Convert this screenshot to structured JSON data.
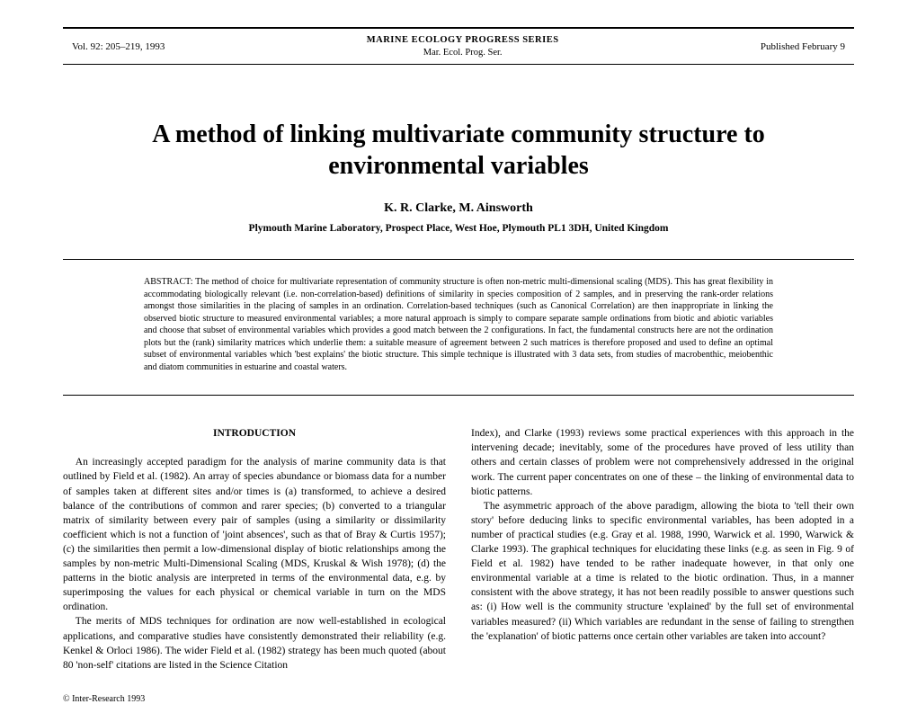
{
  "header": {
    "left": "Vol. 92: 205–219, 1993",
    "center_series": "MARINE ECOLOGY PROGRESS SERIES",
    "center_abbrev": "Mar. Ecol. Prog. Ser.",
    "right": "Published February 9"
  },
  "title": "A method of linking multivariate community structure to environmental variables",
  "authors": "K. R. Clarke, M. Ainsworth",
  "affiliation": "Plymouth Marine Laboratory, Prospect Place, West Hoe, Plymouth PL1 3DH, United Kingdom",
  "abstract": "ABSTRACT: The method of choice for multivariate representation of community structure is often non-metric multi-dimensional scaling (MDS). This has great flexibility in accommodating biologically relevant (i.e. non-correlation-based) definitions of similarity in species composition of 2 samples, and in preserving the rank-order relations amongst those similarities in the placing of samples in an ordination. Correlation-based techniques (such as Canonical Correlation) are then inappropriate in linking the observed biotic structure to measured environmental variables; a more natural approach is simply to compare separate sample ordinations from biotic and abiotic variables and choose that subset of environmental variables which provides a good match between the 2 configurations. In fact, the fundamental constructs here are not the ordination plots but the (rank) similarity matrices which underlie them: a suitable measure of agreement between 2 such matrices is therefore proposed and used to define an optimal subset of environmental variables which 'best explains' the biotic structure. This simple technique is illustrated with 3 data sets, from studies of macrobenthic, meiobenthic and diatom communities in estuarine and coastal waters.",
  "section_title": "INTRODUCTION",
  "left_p1": "An increasingly accepted paradigm for the analysis of marine community data is that outlined by Field et al. (1982). An array of species abundance or biomass data for a number of samples taken at different sites and/or times is (a) transformed, to achieve a desired balance of the contributions of common and rarer species; (b) converted to a triangular matrix of similarity between every pair of samples (using a similarity or dissimilarity coefficient which is not a function of 'joint absences', such as that of Bray & Curtis 1957); (c) the similarities then permit a low-dimensional display of biotic relationships among the samples by non-metric Multi-Dimensional Scaling (MDS, Kruskal & Wish 1978); (d) the patterns in the biotic analysis are interpreted in terms of the environmental data, e.g. by superimposing the values for each physical or chemical variable in turn on the MDS ordination.",
  "left_p2": "The merits of MDS techniques for ordination are now well-established in ecological applications, and comparative studies have consistently demonstrated their reliability (e.g. Kenkel & Orloci 1986). The wider Field et al. (1982) strategy has been much quoted (about 80 'non-self' citations are listed in the Science Citation",
  "right_p1": "Index), and Clarke (1993) reviews some practical experiences with this approach in the intervening decade; inevitably, some of the procedures have proved of less utility than others and certain classes of problem were not comprehensively addressed in the original work. The current paper concentrates on one of these – the linking of environmental data to biotic patterns.",
  "right_p2": "The asymmetric approach of the above paradigm, allowing the biota to 'tell their own story' before deducing links to specific environmental variables, has been adopted in a number of practical studies (e.g. Gray et al. 1988, 1990, Warwick et al. 1990, Warwick & Clarke 1993). The graphical techniques for elucidating these links (e.g. as seen in Fig. 9 of Field et al. 1982) have tended to be rather inadequate however, in that only one environmental variable at a time is related to the biotic ordination. Thus, in a manner consistent with the above strategy, it has not been readily possible to answer questions such as: (i) How well is the community structure 'explained' by the full set of environmental variables measured? (ii) Which variables are redundant in the sense of failing to strengthen the 'explanation' of biotic patterns once certain other variables are taken into account?",
  "copyright": "© Inter-Research 1993"
}
